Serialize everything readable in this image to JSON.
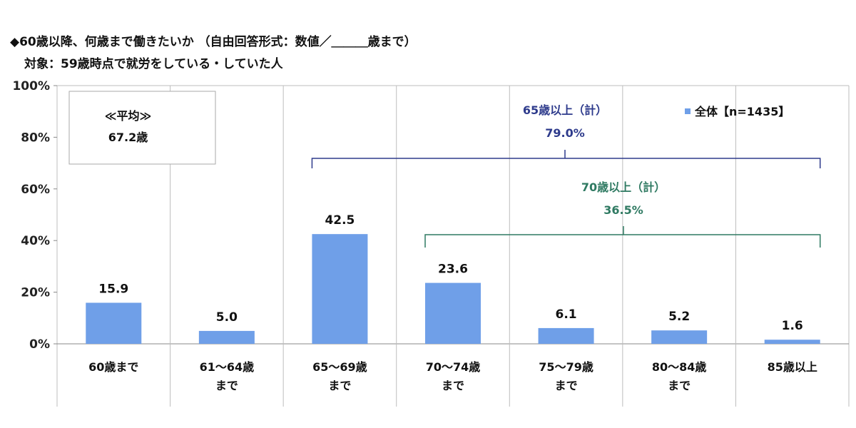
{
  "title": "◆60歳以降、何歳まで働きたいか （自由回答形式：数値／＿＿＿歳まで）",
  "subtitle": "対象：59歳時点で就労をしている・していた人",
  "average_box": {
    "label": "≪平均≫",
    "value": "67.2歳"
  },
  "colors": {
    "bar": "#6f9fe8",
    "bracket_65": "#2e3b8c",
    "bracket_70": "#2f7a62",
    "grid": "#bdbdbd"
  },
  "legend": {
    "icon": "square-marker",
    "label": "全体【n=1435】"
  },
  "brackets": [
    {
      "label": "65歳以上（計）",
      "value": "79.0%",
      "from_index": 2,
      "to_index": 6,
      "color_key": "bracket_65"
    },
    {
      "label": "70歳以上（計）",
      "value": "36.5%",
      "from_index": 3,
      "to_index": 6,
      "color_key": "bracket_70"
    }
  ],
  "chart_data": {
    "type": "bar",
    "categories": [
      [
        "60歳まで"
      ],
      [
        "61〜64歳",
        "まで"
      ],
      [
        "65〜69歳",
        "まで"
      ],
      [
        "70〜74歳",
        "まで"
      ],
      [
        "75〜79歳",
        "まで"
      ],
      [
        "80〜84歳",
        "まで"
      ],
      [
        "85歳以上"
      ]
    ],
    "series": [
      {
        "name": "全体【n=1435】",
        "values": [
          15.9,
          5.0,
          42.5,
          23.6,
          6.1,
          5.2,
          1.6
        ]
      }
    ],
    "value_labels": [
      "15.9",
      "5.0",
      "42.5",
      "23.6",
      "6.1",
      "5.2",
      "1.6"
    ],
    "ylim": [
      0,
      100
    ],
    "yticks": [
      0,
      20,
      40,
      60,
      80,
      100
    ],
    "ytick_labels": [
      "0%",
      "20%",
      "40%",
      "60%",
      "80%",
      "100%"
    ],
    "grid": "vertical separators between categories",
    "legend_position": "top-right"
  }
}
